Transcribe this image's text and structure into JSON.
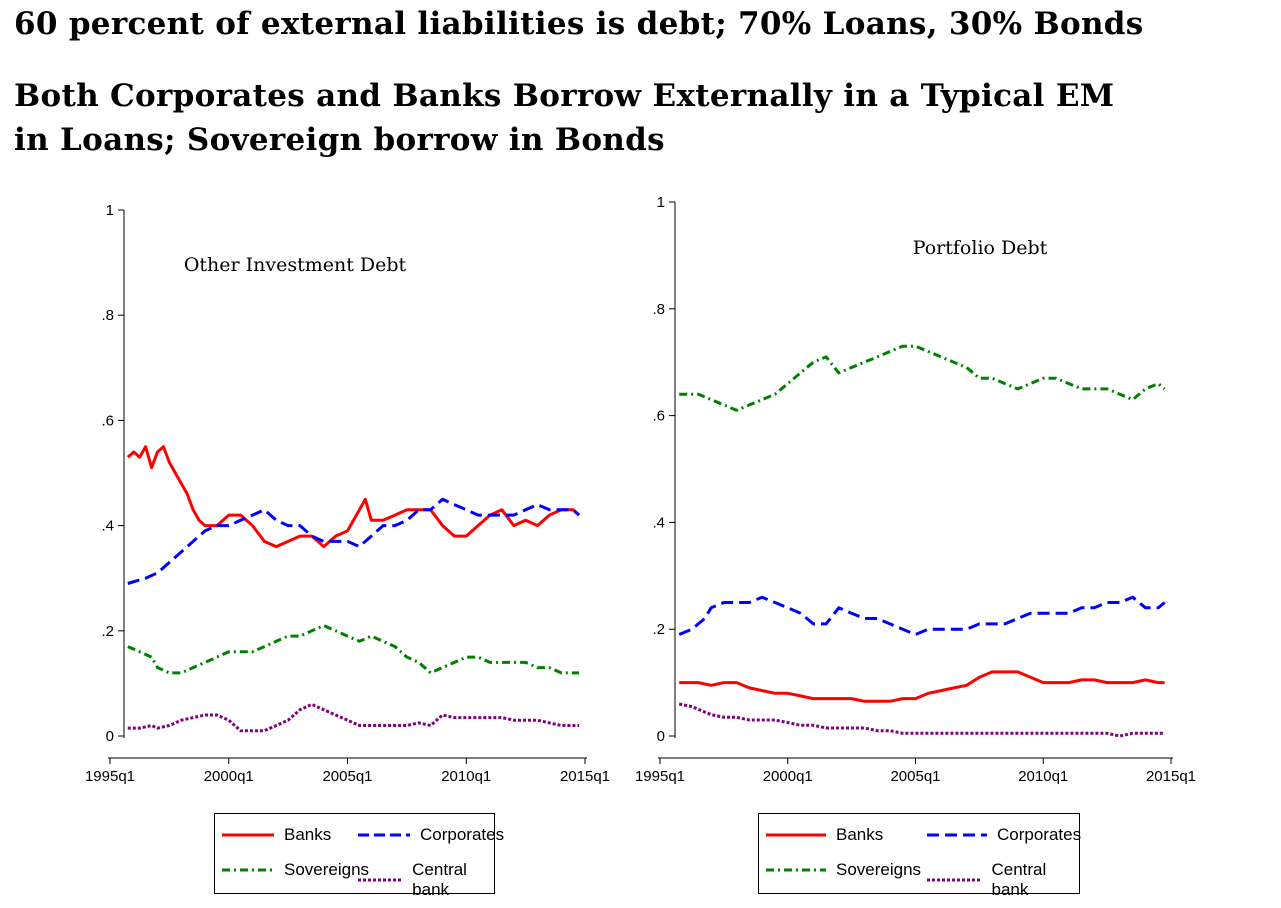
{
  "titles": {
    "line1": "60 percent of external liabilities is debt; 70% Loans, 30% Bonds",
    "line2": "Both Corporates and Banks Borrow Externally in a Typical EM",
    "line3": "in Loans; Sovereign borrow in Bonds"
  },
  "legend": {
    "banks": "Banks",
    "corporates": "Corporates",
    "sovereigns": "Sovereigns",
    "central_bank": "Central bank"
  },
  "colors": {
    "banks": "#ff0000",
    "corporates": "#0000ff",
    "sovereigns": "#008000",
    "central_bank": "#800080"
  },
  "chart_data": [
    {
      "type": "line",
      "title": "Other Investment Debt",
      "x_ticks": [
        "1995q1",
        "2000q1",
        "2005q1",
        "2010q1",
        "2015q1"
      ],
      "y_ticks": [
        "0",
        ".2",
        ".4",
        ".6",
        ".8",
        "1"
      ],
      "xlim": [
        1995.0,
        2015.0
      ],
      "ylim": [
        0,
        1
      ],
      "legend_position": "bottom",
      "series": [
        {
          "name": "Banks",
          "style": "solid",
          "x": [
            1995.75,
            1996.0,
            1996.25,
            1996.5,
            1996.75,
            1997.0,
            1997.25,
            1997.5,
            1997.75,
            1998.0,
            1998.25,
            1998.5,
            1998.75,
            1999.0,
            1999.5,
            2000.0,
            2000.5,
            2001.0,
            2001.5,
            2002.0,
            2002.5,
            2003.0,
            2003.5,
            2004.0,
            2004.5,
            2005.0,
            2005.5,
            2005.75,
            2006.0,
            2006.5,
            2007.0,
            2007.5,
            2008.0,
            2008.5,
            2009.0,
            2009.5,
            2010.0,
            2010.5,
            2011.0,
            2011.5,
            2012.0,
            2012.5,
            2013.0,
            2013.5,
            2014.0,
            2014.5,
            2014.75
          ],
          "y": [
            0.53,
            0.54,
            0.53,
            0.55,
            0.51,
            0.54,
            0.55,
            0.52,
            0.5,
            0.48,
            0.46,
            0.43,
            0.41,
            0.4,
            0.4,
            0.42,
            0.42,
            0.4,
            0.37,
            0.36,
            0.37,
            0.38,
            0.38,
            0.36,
            0.38,
            0.39,
            0.43,
            0.45,
            0.41,
            0.41,
            0.42,
            0.43,
            0.43,
            0.43,
            0.4,
            0.38,
            0.38,
            0.4,
            0.42,
            0.43,
            0.4,
            0.41,
            0.4,
            0.42,
            0.43,
            0.43,
            0.42
          ]
        },
        {
          "name": "Corporates",
          "style": "dash",
          "x": [
            1995.75,
            1996.5,
            1997.0,
            1997.5,
            1998.0,
            1998.5,
            1999.0,
            1999.5,
            2000.0,
            2000.5,
            2001.0,
            2001.5,
            2002.0,
            2002.5,
            2003.0,
            2003.5,
            2004.0,
            2004.5,
            2005.0,
            2005.5,
            2006.0,
            2006.5,
            2007.0,
            2007.5,
            2008.0,
            2008.5,
            2009.0,
            2009.5,
            2010.0,
            2010.5,
            2011.0,
            2011.5,
            2012.0,
            2012.5,
            2013.0,
            2013.5,
            2014.0,
            2014.5,
            2014.75
          ],
          "y": [
            0.29,
            0.3,
            0.31,
            0.33,
            0.35,
            0.37,
            0.39,
            0.4,
            0.4,
            0.41,
            0.42,
            0.43,
            0.41,
            0.4,
            0.4,
            0.38,
            0.37,
            0.37,
            0.37,
            0.36,
            0.38,
            0.4,
            0.4,
            0.41,
            0.43,
            0.43,
            0.45,
            0.44,
            0.43,
            0.42,
            0.42,
            0.42,
            0.42,
            0.43,
            0.44,
            0.43,
            0.43,
            0.43,
            0.42
          ]
        },
        {
          "name": "Sovereigns",
          "style": "dashdot",
          "x": [
            1995.75,
            1996.25,
            1996.75,
            1997.0,
            1997.5,
            1998.0,
            1998.5,
            1999.0,
            1999.5,
            2000.0,
            2000.5,
            2001.0,
            2001.5,
            2002.0,
            2002.5,
            2003.0,
            2003.5,
            2004.0,
            2004.5,
            2005.0,
            2005.5,
            2006.0,
            2006.5,
            2007.0,
            2007.5,
            2008.0,
            2008.5,
            2009.0,
            2009.5,
            2010.0,
            2010.5,
            2011.0,
            2011.5,
            2012.0,
            2012.5,
            2013.0,
            2013.5,
            2014.0,
            2014.5,
            2014.75
          ],
          "y": [
            0.17,
            0.16,
            0.15,
            0.13,
            0.12,
            0.12,
            0.13,
            0.14,
            0.15,
            0.16,
            0.16,
            0.16,
            0.17,
            0.18,
            0.19,
            0.19,
            0.2,
            0.21,
            0.2,
            0.19,
            0.18,
            0.19,
            0.18,
            0.17,
            0.15,
            0.14,
            0.12,
            0.13,
            0.14,
            0.15,
            0.15,
            0.14,
            0.14,
            0.14,
            0.14,
            0.13,
            0.13,
            0.12,
            0.12,
            0.12
          ]
        },
        {
          "name": "Central bank",
          "style": "dot",
          "x": [
            1995.75,
            1996.25,
            1996.75,
            1997.0,
            1997.5,
            1998.0,
            1998.5,
            1999.0,
            1999.5,
            2000.0,
            2000.5,
            2001.0,
            2001.5,
            2002.0,
            2002.5,
            2003.0,
            2003.5,
            2004.0,
            2004.5,
            2005.0,
            2005.5,
            2006.0,
            2006.5,
            2007.0,
            2007.5,
            2008.0,
            2008.5,
            2009.0,
            2009.5,
            2010.0,
            2010.5,
            2011.0,
            2011.5,
            2012.0,
            2012.5,
            2013.0,
            2013.5,
            2014.0,
            2014.5,
            2014.75
          ],
          "y": [
            0.015,
            0.015,
            0.02,
            0.015,
            0.02,
            0.03,
            0.035,
            0.04,
            0.04,
            0.03,
            0.01,
            0.01,
            0.01,
            0.02,
            0.03,
            0.05,
            0.06,
            0.05,
            0.04,
            0.03,
            0.02,
            0.02,
            0.02,
            0.02,
            0.02,
            0.025,
            0.02,
            0.04,
            0.035,
            0.035,
            0.035,
            0.035,
            0.035,
            0.03,
            0.03,
            0.03,
            0.025,
            0.02,
            0.02,
            0.02
          ]
        }
      ]
    },
    {
      "type": "line",
      "title": "Portfolio Debt",
      "x_ticks": [
        "1995q1",
        "2000q1",
        "2005q1",
        "2010q1",
        "2015q1"
      ],
      "y_ticks": [
        "0",
        ".2",
        ".4",
        ".6",
        ".8",
        "1"
      ],
      "xlim": [
        1995.0,
        2015.0
      ],
      "ylim": [
        0,
        1
      ],
      "legend_position": "bottom",
      "series": [
        {
          "name": "Banks",
          "style": "solid",
          "x": [
            1995.75,
            1996.5,
            1997.0,
            1997.5,
            1998.0,
            1998.5,
            1999.0,
            1999.5,
            2000.0,
            2000.5,
            2001.0,
            2001.5,
            2002.0,
            2002.5,
            2003.0,
            2003.5,
            2004.0,
            2004.5,
            2005.0,
            2005.5,
            2006.0,
            2006.5,
            2007.0,
            2007.5,
            2008.0,
            2008.5,
            2009.0,
            2009.5,
            2010.0,
            2010.5,
            2011.0,
            2011.5,
            2012.0,
            2012.5,
            2013.0,
            2013.5,
            2014.0,
            2014.5,
            2014.75
          ],
          "y": [
            0.1,
            0.1,
            0.095,
            0.1,
            0.1,
            0.09,
            0.085,
            0.08,
            0.08,
            0.075,
            0.07,
            0.07,
            0.07,
            0.07,
            0.065,
            0.065,
            0.065,
            0.07,
            0.07,
            0.08,
            0.085,
            0.09,
            0.095,
            0.11,
            0.12,
            0.12,
            0.12,
            0.11,
            0.1,
            0.1,
            0.1,
            0.105,
            0.105,
            0.1,
            0.1,
            0.1,
            0.105,
            0.1,
            0.1
          ]
        },
        {
          "name": "Corporates",
          "style": "dash",
          "x": [
            1995.75,
            1996.25,
            1996.75,
            1997.0,
            1997.5,
            1998.0,
            1998.5,
            1999.0,
            1999.5,
            2000.0,
            2000.5,
            2001.0,
            2001.5,
            2002.0,
            2002.5,
            2003.0,
            2003.5,
            2004.0,
            2004.5,
            2005.0,
            2005.5,
            2006.0,
            2006.5,
            2007.0,
            2007.5,
            2008.0,
            2008.5,
            2009.0,
            2009.5,
            2010.0,
            2010.5,
            2011.0,
            2011.5,
            2012.0,
            2012.5,
            2013.0,
            2013.5,
            2014.0,
            2014.5,
            2014.75
          ],
          "y": [
            0.19,
            0.2,
            0.22,
            0.24,
            0.25,
            0.25,
            0.25,
            0.26,
            0.25,
            0.24,
            0.23,
            0.21,
            0.21,
            0.24,
            0.23,
            0.22,
            0.22,
            0.21,
            0.2,
            0.19,
            0.2,
            0.2,
            0.2,
            0.2,
            0.21,
            0.21,
            0.21,
            0.22,
            0.23,
            0.23,
            0.23,
            0.23,
            0.24,
            0.24,
            0.25,
            0.25,
            0.26,
            0.24,
            0.24,
            0.25
          ]
        },
        {
          "name": "Sovereigns",
          "style": "dashdot",
          "x": [
            1995.75,
            1996.5,
            1997.0,
            1997.5,
            1998.0,
            1998.5,
            1999.0,
            1999.5,
            2000.0,
            2000.5,
            2001.0,
            2001.5,
            2002.0,
            2002.5,
            2003.0,
            2003.5,
            2004.0,
            2004.5,
            2005.0,
            2005.5,
            2006.0,
            2006.5,
            2007.0,
            2007.5,
            2008.0,
            2008.5,
            2009.0,
            2009.5,
            2010.0,
            2010.5,
            2011.0,
            2011.5,
            2012.0,
            2012.5,
            2013.0,
            2013.5,
            2014.0,
            2014.5,
            2014.75
          ],
          "y": [
            0.64,
            0.64,
            0.63,
            0.62,
            0.61,
            0.62,
            0.63,
            0.64,
            0.66,
            0.68,
            0.7,
            0.71,
            0.68,
            0.69,
            0.7,
            0.71,
            0.72,
            0.73,
            0.73,
            0.72,
            0.71,
            0.7,
            0.69,
            0.67,
            0.67,
            0.66,
            0.65,
            0.66,
            0.67,
            0.67,
            0.66,
            0.65,
            0.65,
            0.65,
            0.64,
            0.63,
            0.65,
            0.66,
            0.65
          ]
        },
        {
          "name": "Central bank",
          "style": "dot",
          "x": [
            1995.75,
            1996.25,
            1996.75,
            1997.0,
            1997.5,
            1998.0,
            1998.5,
            1999.0,
            1999.5,
            2000.0,
            2000.5,
            2001.0,
            2001.5,
            2002.0,
            2002.5,
            2003.0,
            2003.5,
            2004.0,
            2004.5,
            2005.0,
            2005.5,
            2006.0,
            2006.5,
            2007.0,
            2007.5,
            2008.0,
            2008.5,
            2009.0,
            2009.5,
            2010.0,
            2010.5,
            2011.0,
            2011.5,
            2012.0,
            2012.5,
            2013.0,
            2013.5,
            2014.0,
            2014.5,
            2014.75
          ],
          "y": [
            0.06,
            0.055,
            0.045,
            0.04,
            0.035,
            0.035,
            0.03,
            0.03,
            0.03,
            0.025,
            0.02,
            0.02,
            0.015,
            0.015,
            0.015,
            0.015,
            0.01,
            0.01,
            0.005,
            0.005,
            0.005,
            0.005,
            0.005,
            0.005,
            0.005,
            0.005,
            0.005,
            0.005,
            0.005,
            0.005,
            0.005,
            0.005,
            0.005,
            0.005,
            0.005,
            0.0,
            0.005,
            0.005,
            0.005,
            0.005
          ]
        }
      ]
    }
  ]
}
